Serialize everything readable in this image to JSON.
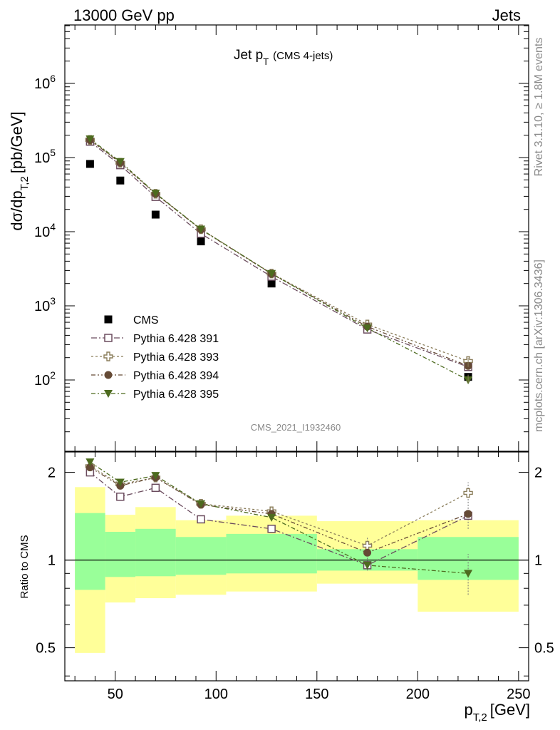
{
  "header": {
    "left": "13000 GeV pp",
    "right": "Jets"
  },
  "side_labels": {
    "rivet": "Rivet 3.1.10, ≥ 1.8M events",
    "mcplots": "mcplots.cern.ch [arXiv:1306.3436]"
  },
  "colors": {
    "cms": "#000000",
    "p391": "#6b4c5e",
    "p393": "#8a7d5a",
    "p394": "#654a35",
    "p395": "#4d6b1f",
    "band_inner": "#99ff99",
    "band_outer": "#ffff99"
  },
  "chart_data": [
    {
      "type": "scatter",
      "title_main": "Jet p",
      "title_sub": "T",
      "title_note": "(CMS 4-jets)",
      "ylabel_main": "dσ/dp",
      "ylabel_sub": "T,2",
      "ylabel_unit": "[pb/GeV]",
      "watermark": "CMS_2021_I1932460",
      "yscale": "log",
      "ylim": [
        10,
        5000000
      ],
      "xlim": [
        25,
        255
      ],
      "ytick_labels": [
        "10^2",
        "10^3",
        "10^4",
        "10^5",
        "10^6"
      ],
      "legend_placement": "bottom-left",
      "x": [
        37.5,
        52.5,
        70,
        92.5,
        127.5,
        175,
        225
      ],
      "x_bins": [
        [
          30,
          45
        ],
        [
          45,
          60
        ],
        [
          60,
          80
        ],
        [
          80,
          105
        ],
        [
          105,
          150
        ],
        [
          150,
          200
        ],
        [
          200,
          250
        ]
      ],
      "series": [
        {
          "name": "CMS",
          "key": "cms",
          "marker": "square-filled",
          "values": [
            82000,
            49000,
            17000,
            7400,
            2000,
            500,
            110
          ]
        },
        {
          "name": "Pythia 6.428 391",
          "key": "p391",
          "marker": "square-open",
          "dash": "8,3,2,3",
          "values": [
            164000,
            79000,
            29500,
            9400,
            2480,
            480,
            150
          ]
        },
        {
          "name": "Pythia 6.428 393",
          "key": "p393",
          "marker": "cross-open",
          "dash": "3,3",
          "values": [
            173000,
            85000,
            32500,
            10800,
            2730,
            560,
            180
          ]
        },
        {
          "name": "Pythia 6.428 394",
          "key": "p394",
          "marker": "circle-filled",
          "dash": "6,3,2,3,2,3",
          "values": [
            172000,
            85000,
            32500,
            10700,
            2700,
            525,
            155
          ]
        },
        {
          "name": "Pythia 6.428 395",
          "key": "p395",
          "marker": "triangle-down-filled",
          "dash": "6,3,2,3",
          "values": [
            178000,
            88000,
            33000,
            10800,
            2720,
            500,
            100
          ]
        }
      ]
    },
    {
      "type": "scatter",
      "ylabel": "Ratio to CMS",
      "xlabel_main": "p",
      "xlabel_sub": "T,2",
      "xlabel_unit": "[GeV]",
      "yscale": "log",
      "ylim": [
        0.385,
        2.35
      ],
      "xlim": [
        25,
        255
      ],
      "xticks": [
        50,
        100,
        150,
        200,
        250
      ],
      "yticks": [
        0.5,
        1,
        2
      ],
      "ytick_labels": [
        "0.5",
        "1",
        "2"
      ],
      "x": [
        37.5,
        52.5,
        70,
        92.5,
        127.5,
        175,
        225
      ],
      "band_bins": [
        [
          30,
          45
        ],
        [
          45,
          60
        ],
        [
          60,
          80
        ],
        [
          80,
          105
        ],
        [
          105,
          150
        ],
        [
          150,
          200
        ],
        [
          200,
          250
        ]
      ],
      "band_inner": [
        [
          0.79,
          1.45
        ],
        [
          0.875,
          1.25
        ],
        [
          0.88,
          1.28
        ],
        [
          0.89,
          1.2
        ],
        [
          0.9,
          1.23
        ],
        [
          0.92,
          1.09
        ],
        [
          0.855,
          1.2
        ]
      ],
      "band_outer": [
        [
          0.48,
          1.78
        ],
        [
          0.715,
          1.43
        ],
        [
          0.74,
          1.52
        ],
        [
          0.76,
          1.37
        ],
        [
          0.78,
          1.42
        ],
        [
          0.83,
          1.36
        ],
        [
          0.665,
          1.37
        ]
      ],
      "series": [
        {
          "name": "Pythia 6.428 391",
          "key": "p391",
          "marker": "square-open",
          "dash": "8,3,2,3",
          "values": [
            2.0,
            1.65,
            1.77,
            1.38,
            1.28,
            0.96,
            1.42
          ]
        },
        {
          "name": "Pythia 6.428 393",
          "key": "p393",
          "marker": "cross-open",
          "dash": "3,3",
          "values": [
            2.1,
            1.82,
            1.92,
            1.56,
            1.47,
            1.12,
            1.7
          ]
        },
        {
          "name": "Pythia 6.428 394",
          "key": "p394",
          "marker": "circle-filled",
          "dash": "6,3,2,3,2,3",
          "values": [
            2.08,
            1.8,
            1.92,
            1.55,
            1.44,
            1.06,
            1.44
          ]
        },
        {
          "name": "Pythia 6.428 395",
          "key": "p395",
          "marker": "triangle-down-filled",
          "dash": "6,3,2,3",
          "values": [
            2.17,
            1.85,
            1.95,
            1.56,
            1.4,
            0.96,
            0.9
          ]
        }
      ]
    }
  ]
}
